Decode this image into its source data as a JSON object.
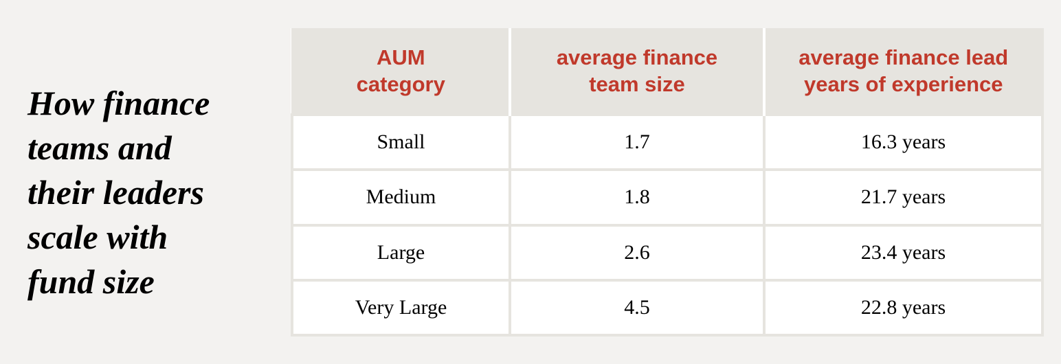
{
  "title_lines": [
    "How finance",
    "teams and",
    "their leaders",
    "scale with",
    "fund size"
  ],
  "table": {
    "header": [
      "AUM\ncategory",
      "average finance\nteam size",
      "average finance lead\nyears of experience"
    ],
    "rows": [
      [
        "Small",
        "1.7",
        "16.3 years"
      ],
      [
        "Medium",
        "1.8",
        "21.7 years"
      ],
      [
        "Large",
        "2.6",
        "23.4 years"
      ],
      [
        "Very Large",
        "4.5",
        "22.8 years"
      ]
    ]
  }
}
